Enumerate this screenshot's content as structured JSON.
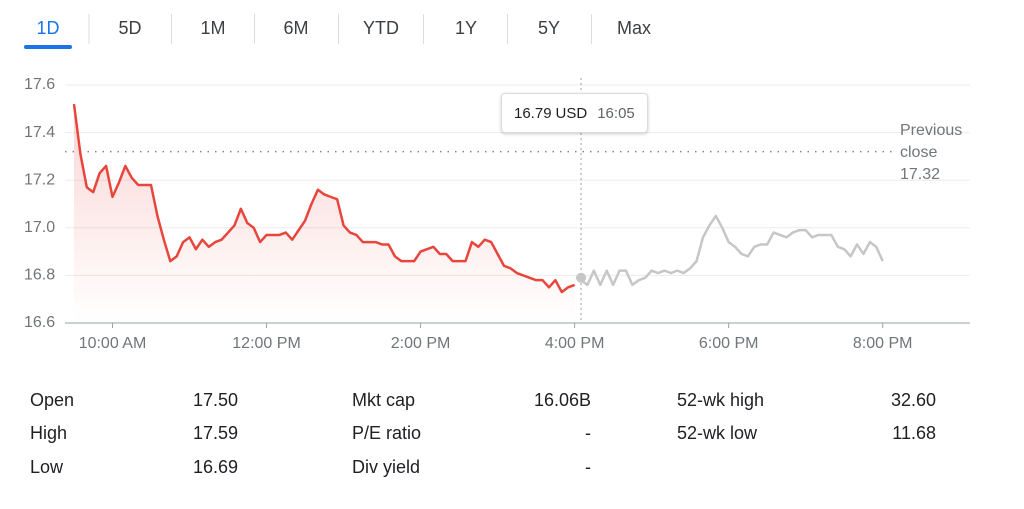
{
  "tabs": [
    "1D",
    "5D",
    "1M",
    "6M",
    "YTD",
    "1Y",
    "5Y",
    "Max"
  ],
  "active_tab": 0,
  "chart_data": {
    "type": "line",
    "xlim": [
      563,
      1268
    ],
    "ylim": [
      16.6,
      17.6
    ],
    "xticks": [
      {
        "value": 600,
        "label": "10:00 AM"
      },
      {
        "value": 720,
        "label": "12:00 PM"
      },
      {
        "value": 840,
        "label": "2:00 PM"
      },
      {
        "value": 960,
        "label": "4:00 PM"
      },
      {
        "value": 1080,
        "label": "6:00 PM"
      },
      {
        "value": 1200,
        "label": "8:00 PM"
      }
    ],
    "yticks": [
      {
        "value": 16.6,
        "label": "16.6"
      },
      {
        "value": 16.8,
        "label": "16.8"
      },
      {
        "value": 17.0,
        "label": "17.0"
      },
      {
        "value": 17.2,
        "label": "17.2"
      },
      {
        "value": 17.4,
        "label": "17.4"
      },
      {
        "value": 17.6,
        "label": "17.6"
      }
    ],
    "grid": true,
    "series": [
      {
        "color": "#e8453c",
        "x": [
          570,
          575,
          580,
          585,
          590,
          595,
          600,
          605,
          610,
          615,
          620,
          625,
          630,
          635,
          640,
          645,
          650,
          655,
          660,
          665,
          670,
          675,
          680,
          685,
          690,
          695,
          700,
          705,
          710,
          715,
          720,
          725,
          730,
          735,
          740,
          745,
          750,
          755,
          760,
          765,
          770,
          775,
          780,
          785,
          790,
          795,
          800,
          805,
          810,
          815,
          820,
          825,
          830,
          835,
          840,
          845,
          850,
          855,
          860,
          865,
          870,
          875,
          880,
          885,
          890,
          895,
          900,
          905,
          910,
          915,
          920,
          925,
          930,
          935,
          940,
          945,
          950,
          955,
          960
        ],
        "values": [
          17.52,
          17.31,
          17.17,
          17.15,
          17.23,
          17.26,
          17.13,
          17.19,
          17.26,
          17.21,
          17.18,
          17.18,
          17.18,
          17.05,
          16.95,
          16.86,
          16.88,
          16.94,
          16.96,
          16.91,
          16.95,
          16.92,
          16.94,
          16.95,
          16.98,
          17.01,
          17.08,
          17.02,
          17.0,
          16.94,
          16.97,
          16.97,
          16.97,
          16.98,
          16.95,
          16.99,
          17.03,
          17.1,
          17.16,
          17.14,
          17.13,
          17.12,
          17.01,
          16.98,
          16.97,
          16.94,
          16.94,
          16.94,
          16.93,
          16.93,
          16.88,
          16.86,
          16.86,
          16.86,
          16.9,
          16.91,
          16.92,
          16.89,
          16.89,
          16.86,
          16.86,
          16.86,
          16.94,
          16.92,
          16.95,
          16.94,
          16.89,
          16.84,
          16.83,
          16.81,
          16.8,
          16.79,
          16.78,
          16.78,
          16.75,
          16.78,
          16.73,
          16.75,
          16.76
        ]
      },
      {
        "color": "#c6c6c6",
        "x": [
          965,
          970,
          975,
          980,
          985,
          990,
          995,
          1000,
          1005,
          1010,
          1015,
          1020,
          1025,
          1030,
          1035,
          1040,
          1045,
          1050,
          1055,
          1060,
          1065,
          1070,
          1075,
          1080,
          1085,
          1090,
          1095,
          1100,
          1105,
          1110,
          1115,
          1120,
          1125,
          1130,
          1135,
          1140,
          1145,
          1150,
          1155,
          1160,
          1165,
          1170,
          1175,
          1180,
          1185,
          1190,
          1195,
          1200
        ],
        "values": [
          16.78,
          16.76,
          16.82,
          16.76,
          16.82,
          16.76,
          16.82,
          16.82,
          16.76,
          16.78,
          16.79,
          16.82,
          16.81,
          16.82,
          16.81,
          16.82,
          16.81,
          16.83,
          16.86,
          16.96,
          17.01,
          17.05,
          17.0,
          16.94,
          16.92,
          16.89,
          16.88,
          16.92,
          16.93,
          16.93,
          16.98,
          16.97,
          16.96,
          16.98,
          16.99,
          16.99,
          16.96,
          16.97,
          16.97,
          16.97,
          16.92,
          16.91,
          16.88,
          16.93,
          16.89,
          16.94,
          16.92,
          16.86
        ]
      }
    ],
    "reference_line": {
      "label": "Previous close",
      "value": 17.32
    },
    "tooltip": {
      "price": 16.79,
      "currency": "USD",
      "time": "16:05"
    }
  },
  "stats": [
    [
      [
        "Open",
        "17.50"
      ],
      [
        "Mkt cap",
        "16.06B"
      ],
      [
        "52-wk high",
        "32.60"
      ]
    ],
    [
      [
        "High",
        "17.59"
      ],
      [
        "P/E ratio",
        "-"
      ],
      [
        "52-wk low",
        "11.68"
      ]
    ],
    [
      [
        "Low",
        "16.69"
      ],
      [
        "Div yield",
        "-"
      ]
    ]
  ]
}
